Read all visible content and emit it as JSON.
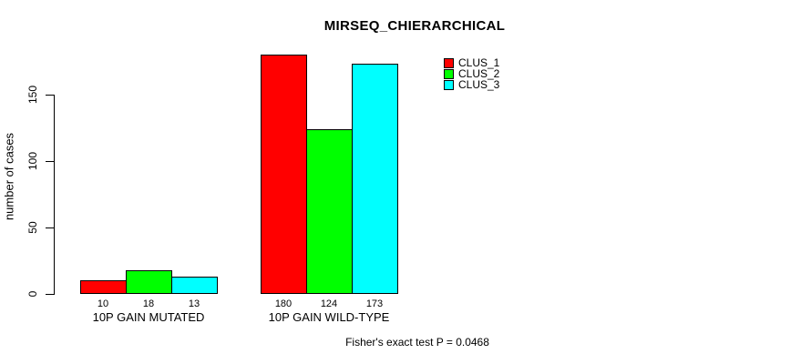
{
  "title": "MIRSEQ_CHIERARCHICAL",
  "ylabel": "number of cases",
  "footer": "Fisher's exact test P = 0.0468",
  "chart_data": {
    "type": "bar",
    "title": "MIRSEQ_CHIERARCHICAL",
    "xlabel": "",
    "ylabel": "number of cases",
    "categories": [
      "10P GAIN MUTATED",
      "10P GAIN WILD-TYPE"
    ],
    "series": [
      {
        "name": "CLUS_1",
        "color": "#ff0000",
        "values": [
          10,
          180
        ]
      },
      {
        "name": "CLUS_2",
        "color": "#00ff00",
        "values": [
          18,
          124
        ]
      },
      {
        "name": "CLUS_3",
        "color": "#00ffff",
        "values": [
          13,
          173
        ]
      }
    ],
    "bar_value_labels": [
      [
        "10",
        "18",
        "13"
      ],
      [
        "180",
        "124",
        "173"
      ]
    ],
    "yticks": [
      0,
      50,
      100,
      150
    ],
    "ylim": [
      0,
      185
    ],
    "grid": false,
    "legend_position": "top-right",
    "annotation": "Fisher's exact test P = 0.0468"
  }
}
